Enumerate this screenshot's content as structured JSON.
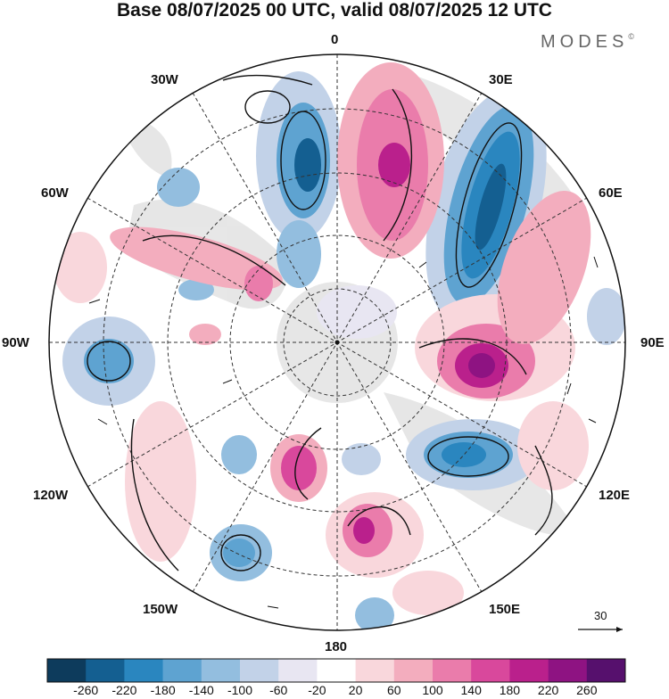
{
  "title": "Base 08/07/2025 00 UTC, valid 08/07/2025 12 UTC",
  "brand": {
    "name": "MODES",
    "mark": "©"
  },
  "longitude_labels": {
    "top": "0",
    "bottom": "180",
    "left": "90W",
    "right": "90E",
    "nw1": "30W",
    "nw2": "60W",
    "ne1": "30E",
    "ne2": "60E",
    "sw1": "120W",
    "sw2": "150W",
    "se1": "120E",
    "se2": "150E"
  },
  "reference_vector": {
    "value": "30"
  },
  "colorbar": {
    "colors": [
      "#0d3b5c",
      "#145f91",
      "#2a86bf",
      "#5ea3d1",
      "#93bedf",
      "#c2d2e8",
      "#e8e6f2",
      "#ffffff",
      "#f9d7dc",
      "#f3adbe",
      "#ea7cab",
      "#d9489c",
      "#ba208c",
      "#8e1382",
      "#56106d"
    ],
    "labels": [
      "-260",
      "-220",
      "-180",
      "-140",
      "-100",
      "-60",
      "-20",
      "20",
      "60",
      "100",
      "140",
      "180",
      "220",
      "260"
    ]
  }
}
